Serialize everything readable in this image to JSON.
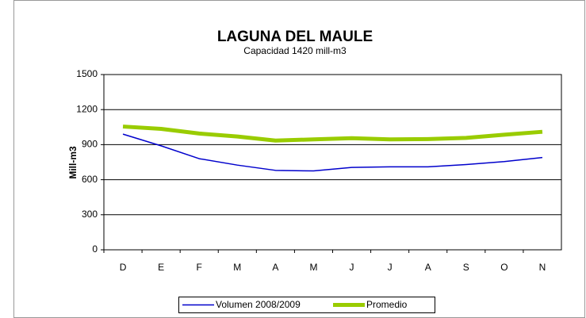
{
  "chart_data": {
    "type": "line",
    "title": "LAGUNA DEL MAULE",
    "subtitle": "Capacidad  1420 mill-m3",
    "y_label": "Mill-m3",
    "categories": [
      "D",
      "E",
      "F",
      "M",
      "A",
      "M",
      "J",
      "J",
      "A",
      "S",
      "O",
      "N"
    ],
    "series": [
      {
        "name": "Volumen  2008/2009",
        "color": "#0000cc",
        "width": 1.5,
        "values": [
          990,
          890,
          780,
          725,
          680,
          675,
          705,
          710,
          710,
          730,
          755,
          790
        ]
      },
      {
        "name": "Promedio",
        "color": "#99cc00",
        "width": 5,
        "values": [
          1055,
          1035,
          995,
          970,
          935,
          945,
          955,
          945,
          948,
          958,
          985,
          1010
        ]
      }
    ],
    "ylim": [
      0,
      1500
    ],
    "yticks": [
      0,
      300,
      600,
      900,
      1200,
      1500
    ],
    "grid": true,
    "legend": "bottom"
  }
}
